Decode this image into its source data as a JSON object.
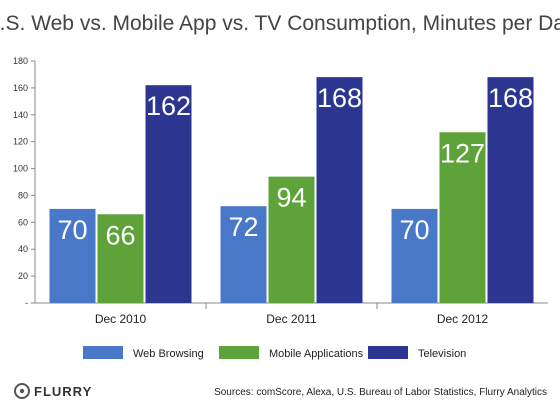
{
  "chart_data": {
    "type": "bar",
    "title": "U.S. Web vs. Mobile App vs. TV Consumption, Minutes per Day",
    "categories": [
      "Dec 2010",
      "Dec 2011",
      "Dec 2012"
    ],
    "series": [
      {
        "name": "Web Browsing",
        "values": [
          70,
          72,
          70
        ],
        "color": "#4a78c9"
      },
      {
        "name": "Mobile Applications",
        "values": [
          66,
          94,
          127
        ],
        "color": "#5ea33a"
      },
      {
        "name": "Television",
        "values": [
          162,
          168,
          168
        ],
        "color": "#2c3590"
      }
    ],
    "ylim": [
      0,
      180
    ],
    "yticks": [
      0,
      20,
      40,
      60,
      80,
      100,
      120,
      140,
      160,
      180
    ],
    "ytick_labels": [
      "-",
      "20",
      "40",
      "60",
      "80",
      "100",
      "120",
      "140",
      "160",
      "180"
    ],
    "grid": false,
    "legend": "bottom"
  },
  "footer": {
    "logo_text": "FLURRY",
    "sources": "Sources: comScore, Alexa, U.S. Bureau of Labor Statistics, Flurry Analytics"
  }
}
